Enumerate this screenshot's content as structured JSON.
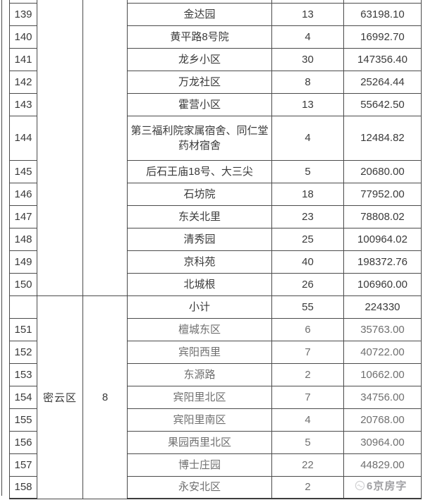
{
  "colors": {
    "border": "#4b4b4b",
    "text_dark": "#3a3a3a",
    "text_gray": "#6f6f6f",
    "watermark": "#96969a"
  },
  "watermark": {
    "text": "6京房字"
  },
  "table": {
    "district_blocks": [
      {
        "label": "",
        "count": "",
        "row_span": 13,
        "start_index": -1
      },
      {
        "label": "密云区",
        "count": "8",
        "row_span": 9,
        "start_index": 12
      }
    ],
    "rows": [
      {
        "no": "139",
        "name": "金达园",
        "count": "13",
        "amount": "63198.10",
        "tone": "dark"
      },
      {
        "no": "140",
        "name": "黄平路8号院",
        "count": "4",
        "amount": "16992.70",
        "tone": "dark"
      },
      {
        "no": "141",
        "name": "龙乡小区",
        "count": "30",
        "amount": "147356.40",
        "tone": "dark"
      },
      {
        "no": "142",
        "name": "万龙社区",
        "count": "8",
        "amount": "25264.44",
        "tone": "dark"
      },
      {
        "no": "143",
        "name": "霍营小区",
        "count": "13",
        "amount": "55642.50",
        "tone": "dark"
      },
      {
        "no": "144",
        "name": "第三福利院家属宿舍、同仁堂药材宿舍",
        "count": "4",
        "amount": "12484.82",
        "tone": "dark",
        "tall": true
      },
      {
        "no": "145",
        "name": "后石王庙18号、大三尖",
        "count": "5",
        "amount": "20680.00",
        "tone": "dark"
      },
      {
        "no": "146",
        "name": "石坊院",
        "count": "18",
        "amount": "77952.00",
        "tone": "dark"
      },
      {
        "no": "147",
        "name": "东关北里",
        "count": "23",
        "amount": "78808.02",
        "tone": "dark"
      },
      {
        "no": "148",
        "name": "清秀园",
        "count": "25",
        "amount": "100964.02",
        "tone": "dark"
      },
      {
        "no": "149",
        "name": "京科苑",
        "count": "40",
        "amount": "198372.76",
        "tone": "dark"
      },
      {
        "no": "150",
        "name": "北城根",
        "count": "26",
        "amount": "106960.00",
        "tone": "dark"
      },
      {
        "no": "",
        "name": "小计",
        "count": "55",
        "amount": "224330",
        "tone": "dark",
        "subtotal": true
      },
      {
        "no": "151",
        "name": "檀城东区",
        "count": "6",
        "amount": "35763.00",
        "tone": "gray"
      },
      {
        "no": "152",
        "name": "宾阳西里",
        "count": "7",
        "amount": "40722.00",
        "tone": "gray"
      },
      {
        "no": "153",
        "name": "东源路",
        "count": "2",
        "amount": "10662.00",
        "tone": "gray"
      },
      {
        "no": "154",
        "name": "宾阳里北区",
        "count": "7",
        "amount": "34756.00",
        "tone": "gray"
      },
      {
        "no": "155",
        "name": "宾阳里南区",
        "count": "4",
        "amount": "20768.00",
        "tone": "gray"
      },
      {
        "no": "156",
        "name": "果园西里北区",
        "count": "5",
        "amount": "30964.00",
        "tone": "gray"
      },
      {
        "no": "157",
        "name": "博士庄园",
        "count": "22",
        "amount": "44829.00",
        "tone": "gray"
      },
      {
        "no": "158",
        "name": "永安北区",
        "count": "2",
        "amount": "",
        "tone": "gray"
      }
    ]
  }
}
